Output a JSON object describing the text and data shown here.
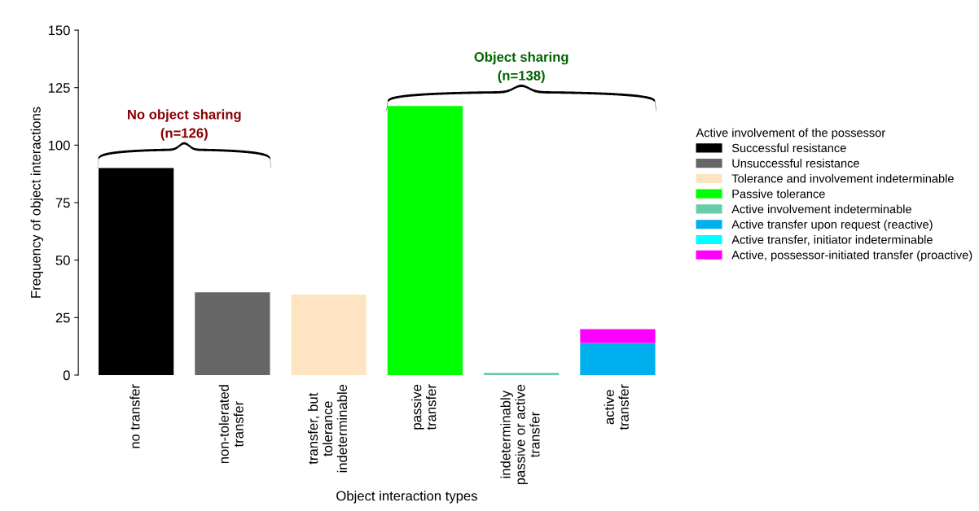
{
  "chart_data": {
    "type": "bar",
    "stacked": true,
    "xlabel": "Object interaction types",
    "ylabel": "Frequency of object interactions",
    "legend_title": "Active involvement of the possessor",
    "legend": "right",
    "categories": [
      "no transfer",
      "non-tolerated\ntransfer",
      "transfer, but\ntolerance\nindeterminable",
      "passive\ntransfer",
      "indeterminably\npassive or active\ntransfer",
      "active\ntransfer"
    ],
    "ylim": [
      0,
      150
    ],
    "yticks": [
      0,
      25,
      50,
      75,
      100,
      125,
      150
    ],
    "grid": false,
    "series": [
      {
        "name": "Successful resistance",
        "color": "#000000",
        "values": [
          90,
          null,
          null,
          null,
          null,
          null
        ]
      },
      {
        "name": "Unsuccessful resistance",
        "color": "#666666",
        "values": [
          null,
          36,
          null,
          null,
          null,
          null
        ]
      },
      {
        "name": "Tolerance and involvement indeterminable",
        "color": "#ffe4c4",
        "values": [
          null,
          null,
          35,
          null,
          null,
          null
        ]
      },
      {
        "name": "Passive tolerance",
        "color": "#00ff00",
        "values": [
          null,
          null,
          null,
          117,
          null,
          null
        ]
      },
      {
        "name": "Active involvement indeterminable",
        "color": "#66cdaa",
        "values": [
          null,
          null,
          null,
          null,
          1,
          null
        ]
      },
      {
        "name": "Active transfer upon request (reactive)",
        "color": "#00b0ee",
        "values": [
          null,
          null,
          null,
          null,
          null,
          14
        ]
      },
      {
        "name": "Active transfer, initiator indeterminable",
        "color": "#00ffff",
        "values": [
          null,
          null,
          null,
          null,
          null,
          0
        ]
      },
      {
        "name": "Active, possessor-initiated transfer (proactive)",
        "color": "#ff00ff",
        "values": [
          null,
          null,
          null,
          null,
          null,
          6
        ]
      }
    ],
    "annotations": [
      "No object sharing\n(n=126)",
      "Object sharing\n(n=138)"
    ]
  }
}
